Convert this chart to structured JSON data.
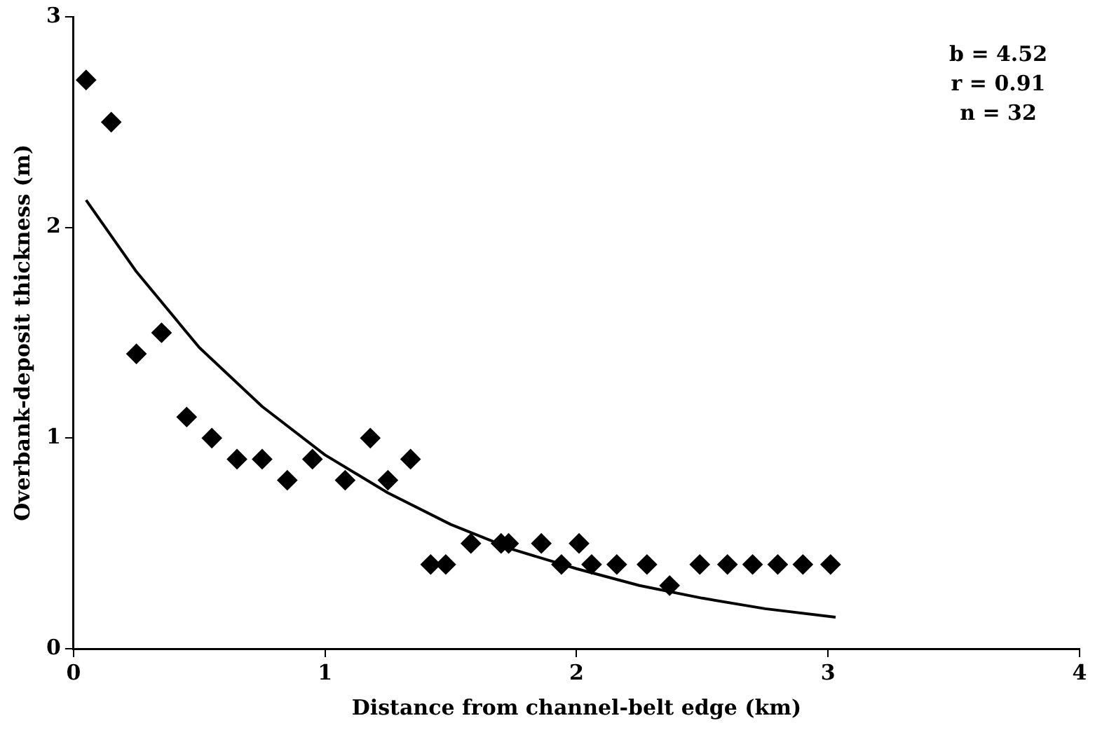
{
  "chart_data": {
    "type": "scatter",
    "xlabel": "Distance from channel-belt edge (km)",
    "ylabel": "Overbank-deposit thickness (m)",
    "xlim": [
      0,
      4
    ],
    "xticks": [
      0,
      1,
      2,
      3,
      4
    ],
    "ylim": [
      0,
      3
    ],
    "yticks": [
      0,
      1,
      2,
      3
    ],
    "grid": false,
    "legend": false,
    "annotations": [
      "b = 4.52",
      "r = 0.91",
      "n = 32"
    ],
    "series": [
      {
        "type": "scatter",
        "color": "#000000",
        "marker": "diamond",
        "x": [
          0.05,
          0.15,
          0.25,
          0.35,
          0.45,
          0.55,
          0.65,
          0.75,
          0.85,
          0.95,
          1.08,
          1.18,
          1.25,
          1.34,
          1.42,
          1.48,
          1.58,
          1.7,
          1.73,
          1.86,
          1.94,
          2.01,
          2.06,
          2.16,
          2.28,
          2.37,
          2.49,
          2.6,
          2.7,
          2.8,
          2.9,
          3.01
        ],
        "values": [
          2.7,
          2.5,
          1.4,
          1.5,
          1.1,
          1.0,
          0.9,
          0.9,
          0.8,
          0.9,
          0.8,
          1.0,
          0.8,
          0.9,
          0.4,
          0.4,
          0.5,
          0.5,
          0.5,
          0.5,
          0.4,
          0.5,
          0.4,
          0.4,
          0.4,
          0.3,
          0.4,
          0.4,
          0.4,
          0.4,
          0.4,
          0.4
        ]
      },
      {
        "type": "line",
        "color": "#000000",
        "marker": "none",
        "x": [
          0.05,
          0.25,
          0.5,
          0.75,
          1,
          1.25,
          1.5,
          1.75,
          2,
          2.25,
          2.5,
          2.75,
          3.03
        ],
        "values": [
          2.13,
          1.79,
          1.43,
          1.15,
          0.92,
          0.74,
          0.59,
          0.47,
          0.38,
          0.3,
          0.24,
          0.19,
          0.15
        ]
      }
    ]
  }
}
